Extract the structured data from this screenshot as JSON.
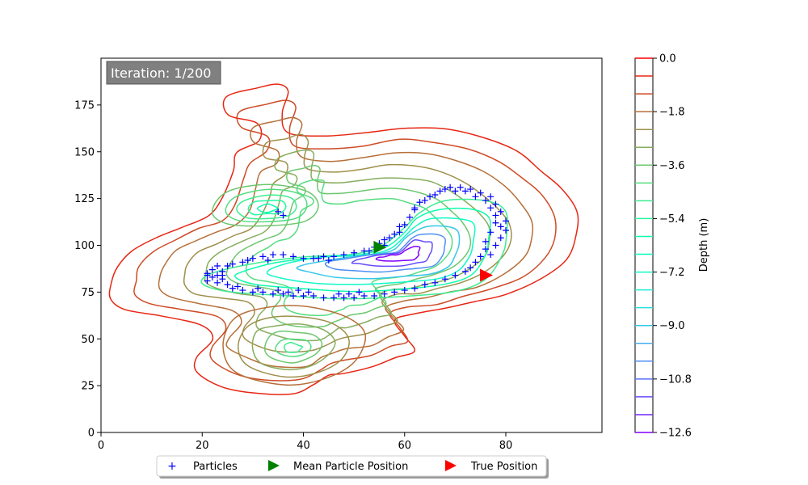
{
  "chart_data": {
    "type": "contour",
    "iteration_text": "Iteration: 1/200",
    "xlim": [
      0,
      99
    ],
    "ylim": [
      0,
      200
    ],
    "x_ticks": [
      0,
      20,
      40,
      60,
      80
    ],
    "y_ticks": [
      0,
      25,
      50,
      75,
      100,
      125,
      150,
      175
    ],
    "colorbar": {
      "label": "Depth (m)",
      "range": [
        -12.6,
        0
      ],
      "tick_values": [
        0.0,
        -1.8,
        -3.6,
        -5.4,
        -7.2,
        -9.0,
        -10.8,
        -12.6
      ],
      "tick_labels": [
        "0.0",
        "−1.8",
        "−3.6",
        "−5.4",
        "−7.2",
        "−9.0",
        "−10.8",
        "−12.6"
      ],
      "levels": [
        0.0,
        -0.6,
        -1.2,
        -1.8,
        -2.4,
        -3.0,
        -3.6,
        -4.2,
        -4.8,
        -5.4,
        -6.0,
        -6.6,
        -7.2,
        -7.8,
        -8.4,
        -9.0,
        -9.6,
        -10.2,
        -10.8,
        -11.4,
        -12.0,
        -12.6
      ],
      "colormap": "rainbow"
    },
    "contours": {
      "outer": [
        [
          -0.6,
          [
            [
              3,
              88
            ],
            [
              6,
              97
            ],
            [
              11,
              104
            ],
            [
              16,
              110
            ],
            [
              21,
              115
            ],
            [
              24,
              125
            ],
            [
              26,
              140
            ],
            [
              27,
              150
            ],
            [
              31,
              156
            ],
            [
              31,
              165
            ],
            [
              25,
              170
            ],
            [
              25,
              180
            ],
            [
              31,
              184
            ],
            [
              35,
              186
            ],
            [
              37,
              182
            ],
            [
              36,
              170
            ],
            [
              37,
              160
            ],
            [
              44,
              158
            ],
            [
              52,
              160
            ],
            [
              60,
              163
            ],
            [
              68,
              162
            ],
            [
              75,
              158
            ],
            [
              82,
              150
            ],
            [
              87,
              140
            ],
            [
              91,
              130
            ],
            [
              94,
              118
            ],
            [
              94,
              105
            ],
            [
              92,
              93
            ],
            [
              87,
              82
            ],
            [
              80,
              74
            ],
            [
              74,
              70
            ],
            [
              68,
              66
            ],
            [
              62,
              64
            ],
            [
              58,
              60
            ],
            [
              60,
              52
            ],
            [
              62,
              44
            ],
            [
              58,
              40
            ],
            [
              54,
              35
            ],
            [
              48,
              32
            ],
            [
              45,
              30
            ],
            [
              42,
              26
            ],
            [
              38,
              21
            ],
            [
              30,
              21
            ],
            [
              24,
              25
            ],
            [
              19,
              32
            ],
            [
              19,
              40
            ],
            [
              22,
              50
            ],
            [
              20,
              58
            ],
            [
              12,
              62
            ],
            [
              5,
              66
            ],
            [
              2,
              72
            ],
            [
              2,
              80
            ]
          ]
        ]
      ],
      "ring_scales": [
        0.9,
        0.8,
        0.7,
        0.61,
        0.52,
        0.44
      ],
      "ring_center": [
        50,
        95
      ],
      "ne_scales": [
        1.0,
        0.84,
        0.68,
        0.53,
        0.39,
        0.26,
        0.14
      ],
      "ne_center": [
        60,
        95
      ],
      "ne_base": [
        [
          22,
          85
        ],
        [
          30,
          90
        ],
        [
          40,
          94
        ],
        [
          50,
          95
        ],
        [
          56,
          100
        ],
        [
          60,
          110
        ],
        [
          63,
          118
        ],
        [
          68,
          124
        ],
        [
          76,
          124
        ],
        [
          80,
          118
        ],
        [
          80,
          105
        ],
        [
          79,
          95
        ],
        [
          76,
          82
        ],
        [
          70,
          76
        ],
        [
          60,
          73
        ],
        [
          48,
          72
        ],
        [
          35,
          73
        ],
        [
          25,
          76
        ],
        [
          20,
          80
        ]
      ],
      "west_scales": [
        1.0,
        0.78,
        0.56,
        0.36,
        0.18
      ],
      "west_center": [
        33,
        120
      ],
      "west_base": [
        [
          22,
          118
        ],
        [
          25,
          128
        ],
        [
          33,
          132
        ],
        [
          41,
          129
        ],
        [
          43,
          121
        ],
        [
          40,
          113
        ],
        [
          32,
          110
        ],
        [
          25,
          111
        ]
      ],
      "south_scales": [
        1.0,
        0.78,
        0.58,
        0.4,
        0.24,
        0.12
      ],
      "south_center": [
        38,
        45
      ],
      "south_base": [
        [
          24,
          45
        ],
        [
          26,
          60
        ],
        [
          32,
          66
        ],
        [
          40,
          67
        ],
        [
          48,
          62
        ],
        [
          52,
          52
        ],
        [
          50,
          38
        ],
        [
          44,
          28
        ],
        [
          36,
          26
        ],
        [
          27,
          32
        ]
      ]
    },
    "particles_xy": [
      [
        21,
        85
      ],
      [
        22,
        87
      ],
      [
        22,
        83
      ],
      [
        23,
        89
      ],
      [
        23,
        80
      ],
      [
        24,
        86
      ],
      [
        24,
        82
      ],
      [
        21,
        81
      ],
      [
        25,
        89
      ],
      [
        25,
        79
      ],
      [
        26,
        90
      ],
      [
        26,
        77
      ],
      [
        28,
        91
      ],
      [
        28,
        76
      ],
      [
        30,
        93
      ],
      [
        30,
        75
      ],
      [
        32,
        94
      ],
      [
        32,
        75
      ],
      [
        34,
        95
      ],
      [
        34,
        74
      ],
      [
        36,
        95
      ],
      [
        36,
        74
      ],
      [
        38,
        94
      ],
      [
        38,
        73
      ],
      [
        40,
        93
      ],
      [
        40,
        73
      ],
      [
        42,
        93
      ],
      [
        42,
        73
      ],
      [
        44,
        94
      ],
      [
        44,
        72
      ],
      [
        46,
        94
      ],
      [
        46,
        72
      ],
      [
        48,
        95
      ],
      [
        48,
        72
      ],
      [
        50,
        96
      ],
      [
        50,
        72
      ],
      [
        52,
        97
      ],
      [
        52,
        73
      ],
      [
        54,
        99
      ],
      [
        54,
        73
      ],
      [
        56,
        100
      ],
      [
        56,
        74
      ],
      [
        57,
        104
      ],
      [
        58,
        75
      ],
      [
        59,
        107
      ],
      [
        60,
        76
      ],
      [
        60,
        111
      ],
      [
        62,
        77
      ],
      [
        61,
        115
      ],
      [
        64,
        79
      ],
      [
        62,
        119
      ],
      [
        66,
        80
      ],
      [
        63,
        123
      ],
      [
        68,
        82
      ],
      [
        65,
        126
      ],
      [
        70,
        84
      ],
      [
        67,
        129
      ],
      [
        72,
        86
      ],
      [
        69,
        131
      ],
      [
        73,
        88
      ],
      [
        71,
        131
      ],
      [
        74,
        91
      ],
      [
        73,
        130
      ],
      [
        75,
        94
      ],
      [
        75,
        128
      ],
      [
        76,
        98
      ],
      [
        77,
        126
      ],
      [
        76,
        102
      ],
      [
        78,
        122
      ],
      [
        77,
        107
      ],
      [
        79,
        118
      ],
      [
        78,
        112
      ],
      [
        80,
        113
      ],
      [
        80,
        108
      ],
      [
        35,
        118
      ],
      [
        36,
        116
      ],
      [
        21,
        84
      ],
      [
        23,
        84
      ],
      [
        24,
        84
      ],
      [
        27,
        78
      ],
      [
        29,
        92
      ],
      [
        31,
        77
      ],
      [
        33,
        92
      ],
      [
        35,
        76
      ],
      [
        37,
        75
      ],
      [
        39,
        76
      ],
      [
        41,
        75
      ],
      [
        43,
        93
      ],
      [
        45,
        92
      ],
      [
        47,
        74
      ],
      [
        49,
        74
      ],
      [
        51,
        75
      ],
      [
        53,
        97
      ],
      [
        55,
        101
      ],
      [
        56,
        103
      ],
      [
        58,
        106
      ],
      [
        59,
        110
      ],
      [
        62,
        120
      ],
      [
        64,
        124
      ],
      [
        66,
        127
      ],
      [
        68,
        130
      ],
      [
        70,
        129
      ],
      [
        72,
        129
      ],
      [
        74,
        126
      ],
      [
        76,
        124
      ],
      [
        77,
        120
      ],
      [
        78,
        116
      ],
      [
        79,
        110
      ],
      [
        79,
        104
      ],
      [
        78,
        100
      ],
      [
        77,
        95
      ]
    ],
    "mean_particle_position": [
      55,
      99
    ],
    "true_position": [
      76,
      84
    ],
    "legend": {
      "particles": "Particles",
      "mean": "Mean Particle Position",
      "true": "True Position"
    },
    "colors": {
      "particles": "#0000ff",
      "mean": "#008000",
      "true": "#ff0000",
      "iteration_box": "#808080"
    }
  }
}
